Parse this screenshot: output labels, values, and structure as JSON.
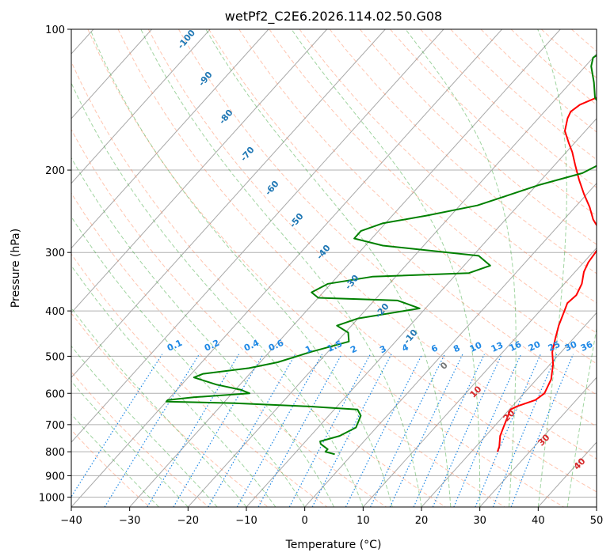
{
  "chart_data": {
    "type": "line",
    "title": "wetPf2_C2E6.2026.114.02.50.G08",
    "xlabel": "Temperature (°C)",
    "ylabel": "Pressure (hPa)",
    "xlim": [
      -40,
      50
    ],
    "ylim": [
      1050,
      100
    ],
    "y_scale": "log",
    "skew": true,
    "grid": true,
    "x_ticks": [
      -40,
      -30,
      -20,
      -10,
      0,
      10,
      20,
      30,
      40,
      50
    ],
    "y_ticks": [
      100,
      200,
      300,
      400,
      500,
      600,
      700,
      800,
      900,
      1000
    ],
    "colors": {
      "temperature": "#ff0000",
      "dewpoint": "#008000",
      "dry_adiabat": "#ff7f50",
      "moist_adiabat": "#2ca02c",
      "mixing_ratio": "#1e88e5",
      "isotherm": "#7f7f7f"
    },
    "series": [
      {
        "key": "temperature",
        "points": [
          [
            24.5,
            800
          ],
          [
            24.0,
            780
          ],
          [
            22.5,
            740
          ],
          [
            21.5,
            700
          ],
          [
            21.0,
            680
          ],
          [
            20.2,
            650
          ],
          [
            20.8,
            640
          ],
          [
            23.0,
            620
          ],
          [
            23.5,
            600
          ],
          [
            22.5,
            560
          ],
          [
            20.5,
            520
          ],
          [
            18.5,
            490
          ],
          [
            17.0,
            460
          ],
          [
            15.5,
            430
          ],
          [
            14.2,
            400
          ],
          [
            13.5,
            385
          ],
          [
            13.8,
            370
          ],
          [
            13.0,
            350
          ],
          [
            11.5,
            330
          ],
          [
            10.8,
            315
          ],
          [
            10.5,
            300
          ],
          [
            10.0,
            285
          ],
          [
            8.0,
            270
          ],
          [
            5.0,
            255
          ],
          [
            2.5,
            240
          ],
          [
            -0.5,
            225
          ],
          [
            -3.5,
            210
          ],
          [
            -6.5,
            195
          ],
          [
            -9.0,
            183
          ],
          [
            -11.0,
            175
          ],
          [
            -13.5,
            165
          ],
          [
            -15.0,
            155
          ],
          [
            -15.5,
            150
          ],
          [
            -15.0,
            145
          ],
          [
            -12.5,
            138
          ],
          [
            -10.5,
            132
          ],
          [
            -10.0,
            125
          ],
          [
            -11.0,
            115
          ],
          [
            -13.5,
            108
          ],
          [
            -16.0,
            100
          ]
        ]
      },
      {
        "key": "dewpoint",
        "points": [
          [
            -3.0,
            810
          ],
          [
            -5.0,
            800
          ],
          [
            -5.0,
            790
          ],
          [
            -7.0,
            770
          ],
          [
            -7.5,
            760
          ],
          [
            -5.0,
            740
          ],
          [
            -3.5,
            710
          ],
          [
            -4.0,
            690
          ],
          [
            -4.5,
            670
          ],
          [
            -6.0,
            650
          ],
          [
            -15.0,
            640
          ],
          [
            -28.0,
            630
          ],
          [
            -40.0,
            625
          ],
          [
            -40.0,
            620
          ],
          [
            -36.0,
            612
          ],
          [
            -27.0,
            600
          ],
          [
            -29.0,
            590
          ],
          [
            -34.0,
            575
          ],
          [
            -39.0,
            555
          ],
          [
            -38.0,
            545
          ],
          [
            -31.0,
            530
          ],
          [
            -27.0,
            515
          ],
          [
            -23.0,
            490
          ],
          [
            -18.0,
            465
          ],
          [
            -19.5,
            445
          ],
          [
            -22.5,
            430
          ],
          [
            -20.0,
            415
          ],
          [
            -11.0,
            395
          ],
          [
            -16.0,
            380
          ],
          [
            -30.0,
            375
          ],
          [
            -32.0,
            365
          ],
          [
            -30.5,
            350
          ],
          [
            -24.0,
            338
          ],
          [
            -8.0,
            332
          ],
          [
            -5.5,
            320
          ],
          [
            -9.0,
            305
          ],
          [
            -27.0,
            290
          ],
          [
            -33.0,
            280
          ],
          [
            -33.0,
            270
          ],
          [
            -30.5,
            260
          ],
          [
            -24.0,
            250
          ],
          [
            -17.0,
            238
          ],
          [
            -13.5,
            227
          ],
          [
            -9.5,
            215
          ],
          [
            -4.0,
            203
          ],
          [
            -2.5,
            195
          ],
          [
            -5.0,
            180
          ],
          [
            -7.0,
            165
          ],
          [
            -8.0,
            155
          ],
          [
            -10.5,
            148
          ],
          [
            -13.5,
            140
          ],
          [
            -16.0,
            130
          ],
          [
            -19.0,
            120
          ],
          [
            -20.0,
            115
          ],
          [
            -19.0,
            110
          ],
          [
            -17.0,
            105
          ],
          [
            -15.5,
            100
          ]
        ]
      }
    ],
    "dry_adiabat_labels": [
      "-100",
      "-90",
      "-80",
      "-70",
      "-60",
      "-50",
      "-40",
      "-30",
      "-20",
      "-10"
    ],
    "moist_adiabat_labels": [
      "0",
      "10",
      "20",
      "30",
      "40"
    ],
    "mixing_ratio_labels": [
      "0.1",
      "0.2",
      "0.4",
      "0.6",
      "1",
      "1.5",
      "2",
      "3",
      "4",
      "6",
      "8",
      "10",
      "13",
      "16",
      "20",
      "25",
      "30",
      "36"
    ]
  }
}
